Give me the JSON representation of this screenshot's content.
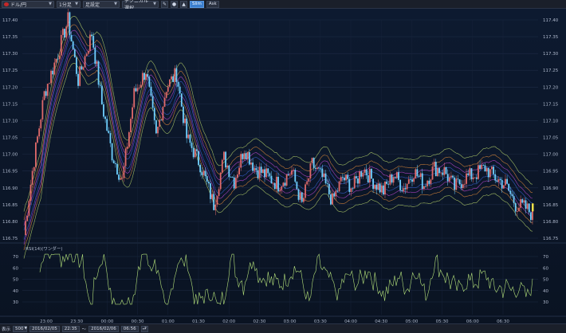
{
  "toolbar": {
    "symbol": "ドル/円",
    "interval": "1分足",
    "mode": "足設定",
    "indicator": "テクニカル選択",
    "btn_slim": "Slim",
    "btn_ask": "Ask",
    "colors": {
      "active": "#3b7fd0"
    }
  },
  "chart": {
    "price_ticks": [
      "117.40",
      "117.35",
      "117.30",
      "117.25",
      "117.20",
      "117.15",
      "117.10",
      "117.05",
      "117.00",
      "116.95",
      "116.90",
      "116.85",
      "116.80",
      "116.75"
    ],
    "rsi_label": "RSI(14)(ワンダー)",
    "rsi_ticks": [
      "70",
      "60",
      "50",
      "40",
      "30"
    ],
    "time_ticks": [
      "23:00",
      "23:30",
      "00:00",
      "00:30",
      "01:00",
      "01:30",
      "02:00",
      "02:30",
      "03:00",
      "03:30",
      "04:00",
      "04:30",
      "05:00",
      "05:30",
      "06:00",
      "06:30"
    ],
    "colors": {
      "background": "#0c1526",
      "up": "#e06a6a",
      "down": "#6fd0ff",
      "bb_outer": "#b7d36b",
      "bb_mid1": "#e08a3a",
      "bb_mid2": "#c24ad6",
      "bb_inner": "#3a63d6",
      "rsi": "#b3e07a"
    }
  },
  "bottom": {
    "label": "表示",
    "count": "500",
    "from_date": "2016/02/05",
    "from_time": "22:35",
    "sep": "〜",
    "to_date": "2016/02/06",
    "to_time": "06:56"
  }
}
